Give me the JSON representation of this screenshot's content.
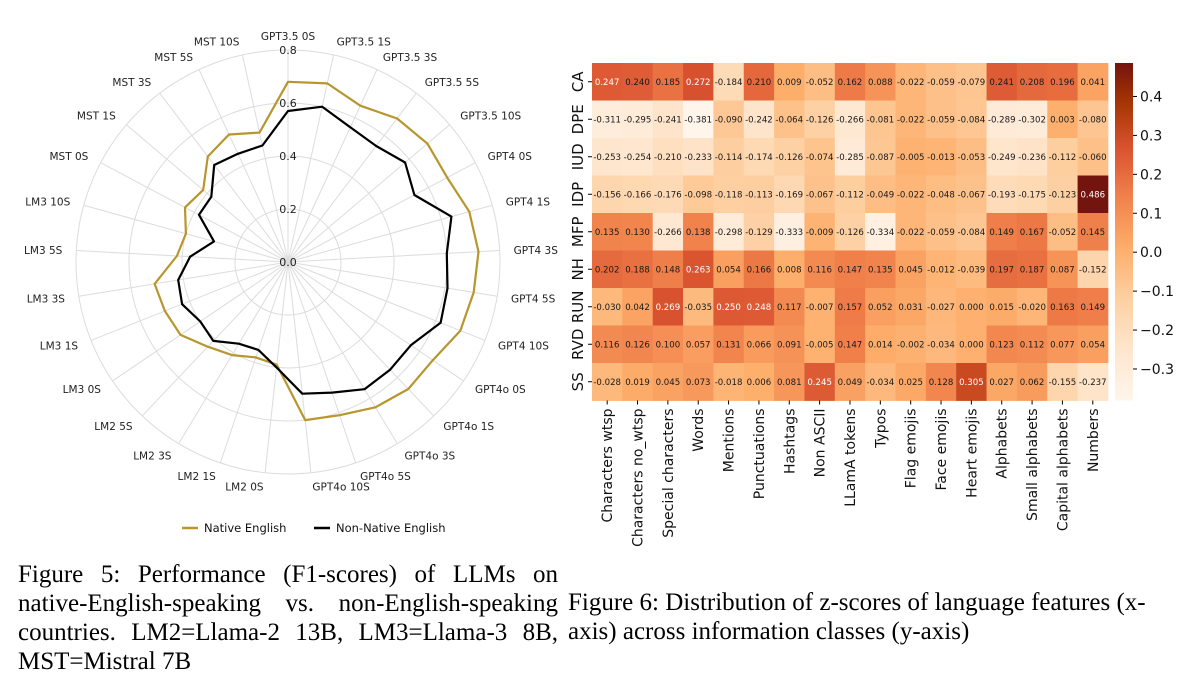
{
  "figure5": {
    "caption": "Figure 5: Performance (F1-scores) of LLMs on native-English-speaking vs. non-English-speaking countries. LM2=Llama-2 13B, LM3=Llama-3 8B, MST=Mistral 7B"
  },
  "figure6": {
    "caption": "Figure 6: Distribution of z-scores of language features (x-axis) across information classes (y-axis)"
  },
  "chart_data": [
    {
      "type": "radar",
      "categories": [
        "GPT3.5 0S",
        "GPT3.5 1S",
        "GPT3.5 3S",
        "GPT3.5 5S",
        "GPT3.5 10S",
        "GPT4 0S",
        "GPT4 1S",
        "GPT4 3S",
        "GPT4 5S",
        "GPT4 10S",
        "GPT4o 0S",
        "GPT4o 1S",
        "GPT4o 3S",
        "GPT4o 5S",
        "GPT4o 10S",
        "LM2 0S",
        "LM2 1S",
        "LM2 3S",
        "LM2 5S",
        "LM3 0S",
        "LM3 1S",
        "LM3 3S",
        "LM3 5S",
        "LM3 10S",
        "MST 0S",
        "MST 1S",
        "MST 3S",
        "MST 5S",
        "MST 10S"
      ],
      "rticks": [
        "0.0",
        "0.2",
        "0.4",
        "0.6",
        "0.8"
      ],
      "rlim": [
        0,
        0.8
      ],
      "legend_position": "bottom",
      "series": [
        {
          "name": "Native English",
          "color": "#b8962e",
          "values": [
            0.68,
            0.69,
            0.65,
            0.68,
            0.69,
            0.68,
            0.71,
            0.72,
            0.71,
            0.7,
            0.66,
            0.66,
            0.64,
            0.61,
            0.6,
            0.39,
            0.38,
            0.41,
            0.44,
            0.49,
            0.5,
            0.51,
            0.42,
            0.4,
            0.44,
            0.42,
            0.5,
            0.53,
            0.5
          ]
        },
        {
          "name": "Non-Native English",
          "color": "#000000",
          "values": [
            0.57,
            0.6,
            0.56,
            0.55,
            0.58,
            0.54,
            0.64,
            0.6,
            0.61,
            0.62,
            0.56,
            0.56,
            0.56,
            0.52,
            0.5,
            0.4,
            0.35,
            0.36,
            0.41,
            0.4,
            0.43,
            0.42,
            0.37,
            0.29,
            0.38,
            0.38,
            0.46,
            0.45,
            0.45
          ]
        }
      ]
    },
    {
      "type": "heatmap",
      "rows": [
        "CA",
        "DPE",
        "IUD",
        "IDP",
        "MFP",
        "NH",
        "RUN",
        "RVD",
        "SS"
      ],
      "columns": [
        "Characters wtsp",
        "Characters no_wtsp",
        "Special characters",
        "Words",
        "Mentions",
        "Punctuations",
        "Hashtags",
        "Non ASCII",
        "LLamA tokens",
        "Typos",
        "Flag emojis",
        "Face emojis",
        "Heart emojis",
        "Alphabets",
        "Small alphabets",
        "Capital alphabets",
        "Numbers"
      ],
      "values": [
        [
          0.247,
          0.24,
          0.185,
          0.272,
          -0.184,
          0.21,
          0.009,
          -0.052,
          0.162,
          0.088,
          -0.022,
          -0.059,
          -0.079,
          0.241,
          0.208,
          0.196,
          0.041
        ],
        [
          -0.311,
          -0.295,
          -0.241,
          -0.381,
          -0.09,
          -0.242,
          -0.064,
          -0.126,
          -0.266,
          -0.081,
          -0.022,
          -0.059,
          -0.084,
          -0.289,
          -0.302,
          0.003,
          -0.08
        ],
        [
          -0.253,
          -0.254,
          -0.21,
          -0.233,
          -0.114,
          -0.174,
          -0.126,
          -0.074,
          -0.285,
          -0.087,
          -0.005,
          -0.013,
          -0.053,
          -0.249,
          -0.236,
          -0.112,
          -0.06
        ],
        [
          -0.156,
          -0.166,
          -0.176,
          -0.098,
          -0.118,
          -0.113,
          -0.169,
          -0.067,
          -0.112,
          -0.049,
          -0.022,
          -0.048,
          -0.067,
          -0.193,
          -0.175,
          -0.123,
          0.486
        ],
        [
          0.135,
          0.13,
          -0.266,
          0.138,
          -0.298,
          -0.129,
          -0.333,
          -0.009,
          -0.126,
          -0.334,
          -0.022,
          -0.059,
          -0.084,
          0.149,
          0.167,
          -0.052,
          0.145
        ],
        [
          0.202,
          0.188,
          0.148,
          0.263,
          0.054,
          0.166,
          0.008,
          0.116,
          0.147,
          0.135,
          0.045,
          -0.012,
          -0.039,
          0.197,
          0.187,
          0.087,
          -0.152
        ],
        [
          -0.03,
          0.042,
          0.269,
          -0.035,
          0.25,
          0.248,
          0.117,
          -0.007,
          0.157,
          0.052,
          0.031,
          -0.027,
          -0.0,
          0.015,
          -0.02,
          0.163,
          0.149
        ],
        [
          0.116,
          0.126,
          0.1,
          0.057,
          0.131,
          0.066,
          0.091,
          -0.005,
          0.147,
          0.014,
          -0.002,
          -0.034,
          0.0,
          0.123,
          0.112,
          0.077,
          0.054
        ],
        [
          -0.028,
          0.019,
          0.045,
          0.073,
          -0.018,
          0.006,
          0.081,
          0.245,
          0.049,
          -0.034,
          0.025,
          0.128,
          0.305,
          0.027,
          0.062,
          -0.155,
          -0.237
        ]
      ],
      "colorbar_ticks": [
        "0.4",
        "0.3",
        "0.2",
        "0.1",
        "0.0",
        "−0.1",
        "−0.2",
        "−0.3"
      ],
      "colorbar_tick_values": [
        0.4,
        0.3,
        0.2,
        0.1,
        0.0,
        -0.1,
        -0.2,
        -0.3
      ],
      "vmin": -0.381,
      "vmax": 0.486,
      "colormap": "Oranges (light to dark red)"
    }
  ]
}
